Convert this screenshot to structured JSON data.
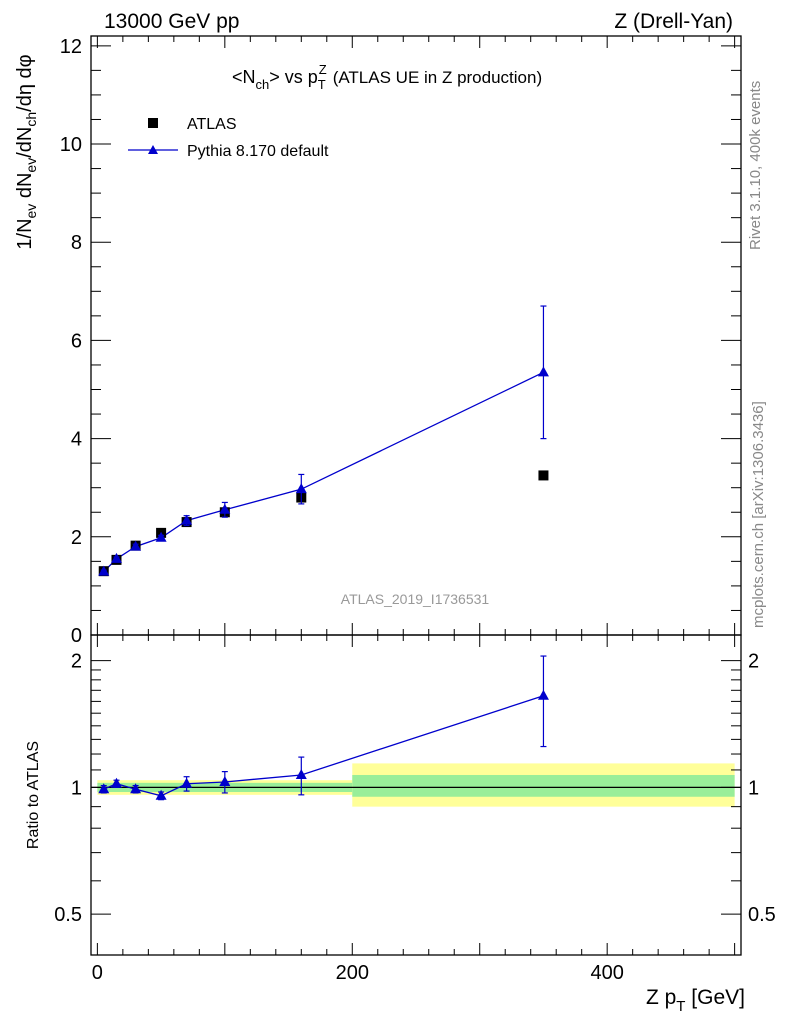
{
  "header": {
    "energy_label": "13000 GeV pp",
    "process_label": "Z (Drell-Yan)"
  },
  "side_text": {
    "rivet": "Rivet 3.1.10,  400k events",
    "mcplots": "mcplots.cern.ch [arXiv:1306.3436]"
  },
  "analysis_id": "ATLAS_2019_I1736531",
  "colors": {
    "data_marker": "#000000",
    "mc_line": "#0000cc",
    "band_inner": "#99ee99",
    "band_outer": "#ffff99"
  },
  "chart_data": [
    {
      "type": "scatter",
      "panel": "main",
      "title": "<Nch> vs pTZ (ATLAS UE in Z production)",
      "ylabel": "1/Nev dNev/dNch/dη dφ",
      "xlim": [
        -5,
        505
      ],
      "ylim": [
        0,
        12.2
      ],
      "x_ticks": [
        0,
        200,
        400
      ],
      "y_ticks": [
        0,
        2,
        4,
        6,
        8,
        10,
        12
      ],
      "legend_position": "top-left",
      "series": [
        {
          "name": "ATLAS",
          "marker": "square",
          "x": [
            5,
            15,
            30,
            50,
            70,
            100,
            160,
            350
          ],
          "y": [
            1.3,
            1.53,
            1.82,
            2.08,
            2.3,
            2.5,
            2.8,
            3.25
          ]
        },
        {
          "name": "Pythia 8.170 default",
          "marker": "triangle",
          "x": [
            5,
            15,
            30,
            50,
            70,
            100,
            160,
            350
          ],
          "y": [
            1.29,
            1.55,
            1.8,
            1.98,
            2.33,
            2.55,
            2.97,
            5.35
          ],
          "y_err": [
            0.03,
            0.04,
            0.05,
            0.05,
            0.1,
            0.15,
            0.3,
            1.35
          ]
        }
      ]
    },
    {
      "type": "line",
      "panel": "ratio",
      "xlabel": "Z pT [GeV]",
      "ylabel": "Ratio to ATLAS",
      "xlim": [
        -5,
        505
      ],
      "ylim": [
        0.4,
        2.3
      ],
      "y_scale": "log",
      "y_ticks": [
        0.5,
        1,
        2
      ],
      "x_ticks": [
        0,
        200,
        400
      ],
      "bands": [
        {
          "x": [
            0,
            200
          ],
          "inner": [
            0.975,
            1.025
          ],
          "outer": [
            0.96,
            1.04
          ]
        },
        {
          "x": [
            200,
            500
          ],
          "inner": [
            0.95,
            1.07
          ],
          "outer": [
            0.9,
            1.14
          ]
        }
      ],
      "series": [
        {
          "name": "Pythia 8.170 default",
          "x": [
            5,
            15,
            30,
            50,
            70,
            100,
            160,
            350
          ],
          "y": [
            0.99,
            1.02,
            0.99,
            0.955,
            1.02,
            1.03,
            1.07,
            1.65
          ],
          "y_err": [
            0.02,
            0.02,
            0.02,
            0.02,
            0.04,
            0.06,
            0.11,
            0.4
          ]
        }
      ]
    }
  ]
}
